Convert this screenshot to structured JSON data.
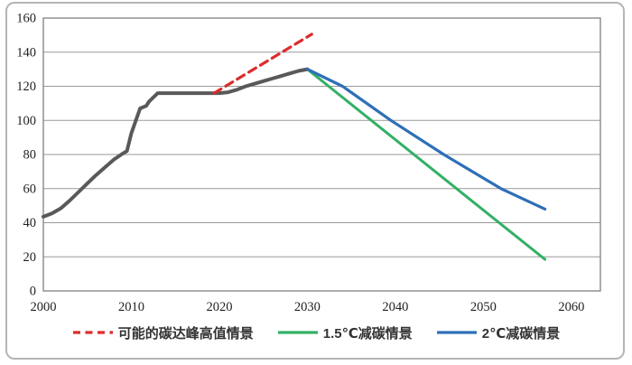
{
  "chart_data": {
    "type": "line",
    "title": "",
    "grid": "horizontal",
    "legend_position": "bottom",
    "x_axis": {
      "range": [
        2000,
        2063.3
      ],
      "ticks": [
        2000,
        2010,
        2020,
        2030,
        2040,
        2050,
        2060
      ]
    },
    "y_axis": {
      "range": [
        0,
        160
      ],
      "ticks": [
        0,
        20,
        40,
        60,
        80,
        100,
        120,
        140,
        160
      ]
    },
    "colors": {
      "grid": "#9a9a9a",
      "plot_border": "#7f7f7f",
      "axis_text": "#1f1f1f",
      "outer_border": "#b5b5b5",
      "historical": "#595959",
      "peak_scenario_red": "#dd2b2b",
      "scenario_1p5c_green": "#33b065",
      "scenario_2c_blue": "#2e6fb7"
    },
    "series": [
      {
        "id": "historical",
        "label": "",
        "in_legend": false,
        "color": "#595959",
        "dash": null,
        "width": 4,
        "points": [
          [
            2000,
            43.5
          ],
          [
            2001,
            45.5
          ],
          [
            2002,
            48.5
          ],
          [
            2003,
            53
          ],
          [
            2004,
            58
          ],
          [
            2005,
            63
          ],
          [
            2006,
            68
          ],
          [
            2007,
            72.5
          ],
          [
            2008,
            77
          ],
          [
            2009,
            80.5
          ],
          [
            2009.5,
            82
          ],
          [
            2010,
            92.5
          ],
          [
            2011,
            107
          ],
          [
            2011.7,
            108.5
          ],
          [
            2012,
            111
          ],
          [
            2013,
            116
          ],
          [
            2014,
            116
          ],
          [
            2015,
            116
          ],
          [
            2016,
            116
          ],
          [
            2017,
            116
          ],
          [
            2018,
            116
          ],
          [
            2019,
            116
          ],
          [
            2020,
            116
          ],
          [
            2021,
            116.5
          ],
          [
            2022,
            118
          ],
          [
            2023,
            120
          ],
          [
            2024,
            121.5
          ],
          [
            2025,
            123
          ],
          [
            2026,
            124.5
          ],
          [
            2027,
            126
          ],
          [
            2028,
            127.5
          ],
          [
            2029,
            129
          ],
          [
            2030,
            130
          ]
        ]
      },
      {
        "id": "peak-high-scenario",
        "label": "可能的碳达峰高值情景",
        "in_legend": true,
        "color": "#dd2b2b",
        "dash": "9 6",
        "width": 3.2,
        "points": [
          [
            2019.4,
            116
          ],
          [
            2030.5,
            150.5
          ]
        ]
      },
      {
        "id": "scenario-1p5c",
        "label": "1.5℃减碳情景",
        "in_legend": true,
        "color": "#33b065",
        "dash": null,
        "width": 3,
        "points": [
          [
            2030,
            130
          ],
          [
            2057,
            18.5
          ]
        ]
      },
      {
        "id": "scenario-2c",
        "label": "2℃减碳情景",
        "in_legend": true,
        "color": "#2e6fb7",
        "dash": null,
        "width": 3.2,
        "points": [
          [
            2030,
            130
          ],
          [
            2034,
            120
          ],
          [
            2039.5,
            100
          ],
          [
            2045.5,
            80
          ],
          [
            2052,
            60
          ],
          [
            2057,
            48
          ]
        ]
      }
    ]
  }
}
